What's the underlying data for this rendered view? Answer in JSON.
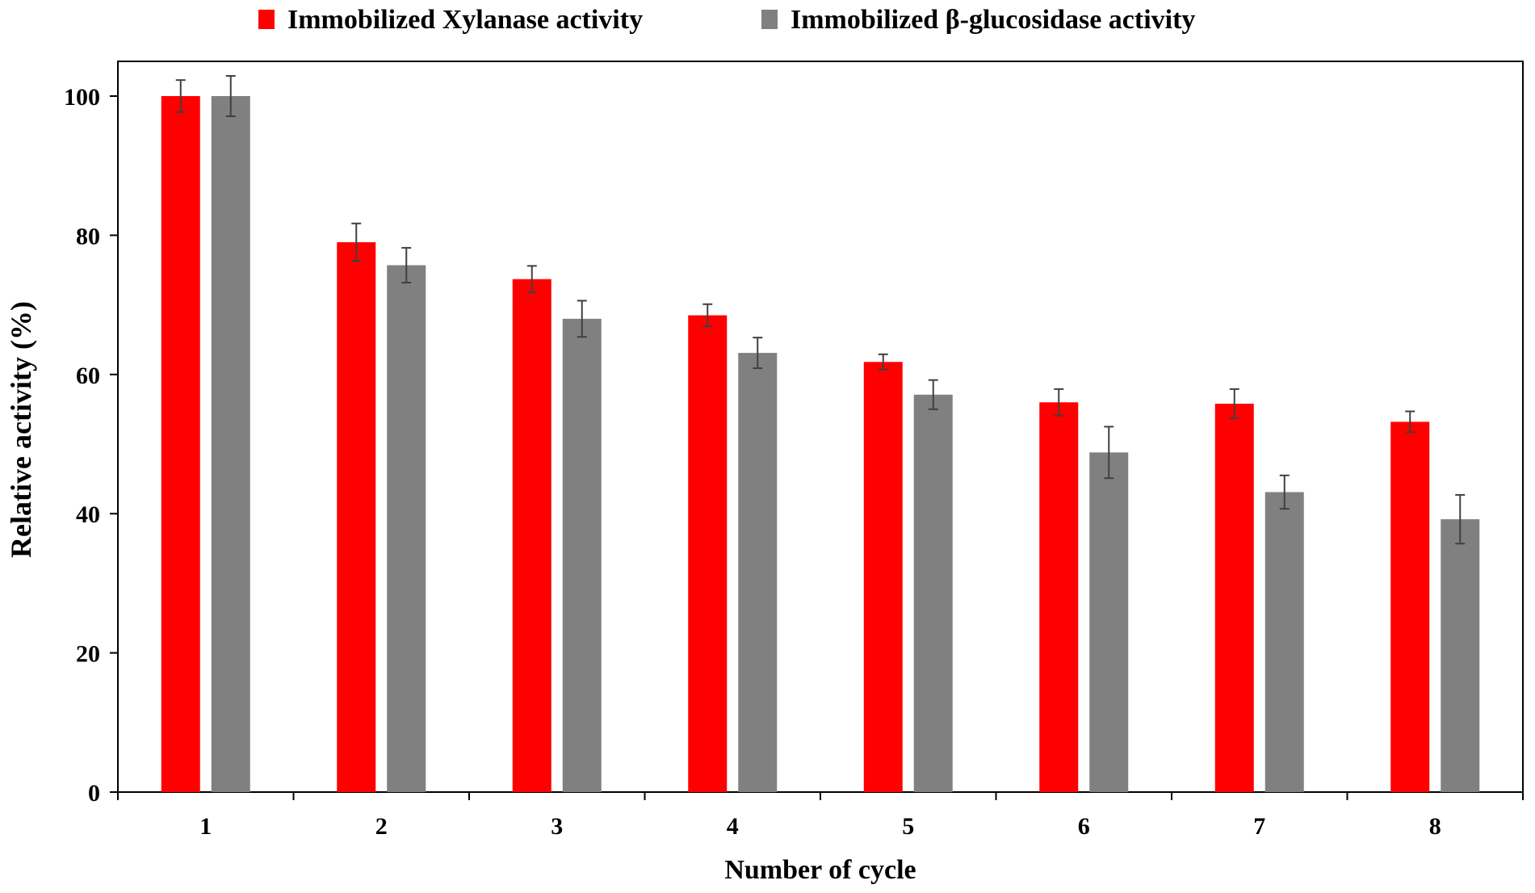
{
  "chart_data": {
    "type": "bar",
    "title": "",
    "xlabel": "Number of cycle",
    "ylabel": "Relative activity (%)",
    "categories": [
      "1",
      "2",
      "3",
      "4",
      "5",
      "6",
      "7",
      "8"
    ],
    "ylim": [
      0,
      100
    ],
    "yticks": [
      "0",
      "20",
      "40",
      "60",
      "80",
      "100"
    ],
    "legend_position": "top-center",
    "series": [
      {
        "name": "Immobilized Xylanase activity",
        "color": "#ff0000",
        "values": [
          100,
          79,
          73.7,
          68.5,
          61.8,
          56,
          55.8,
          53.2
        ],
        "errors": [
          2.3,
          2.7,
          1.9,
          1.6,
          1.1,
          1.9,
          2.1,
          1.5
        ]
      },
      {
        "name": "Immobilized β-glucosidase activity",
        "color": "#808080",
        "values": [
          100,
          75.7,
          68,
          63.1,
          57.1,
          48.8,
          43.1,
          39.2
        ],
        "errors": [
          2.9,
          2.5,
          2.6,
          2.2,
          2.1,
          3.7,
          2.4,
          3.5
        ]
      }
    ]
  }
}
